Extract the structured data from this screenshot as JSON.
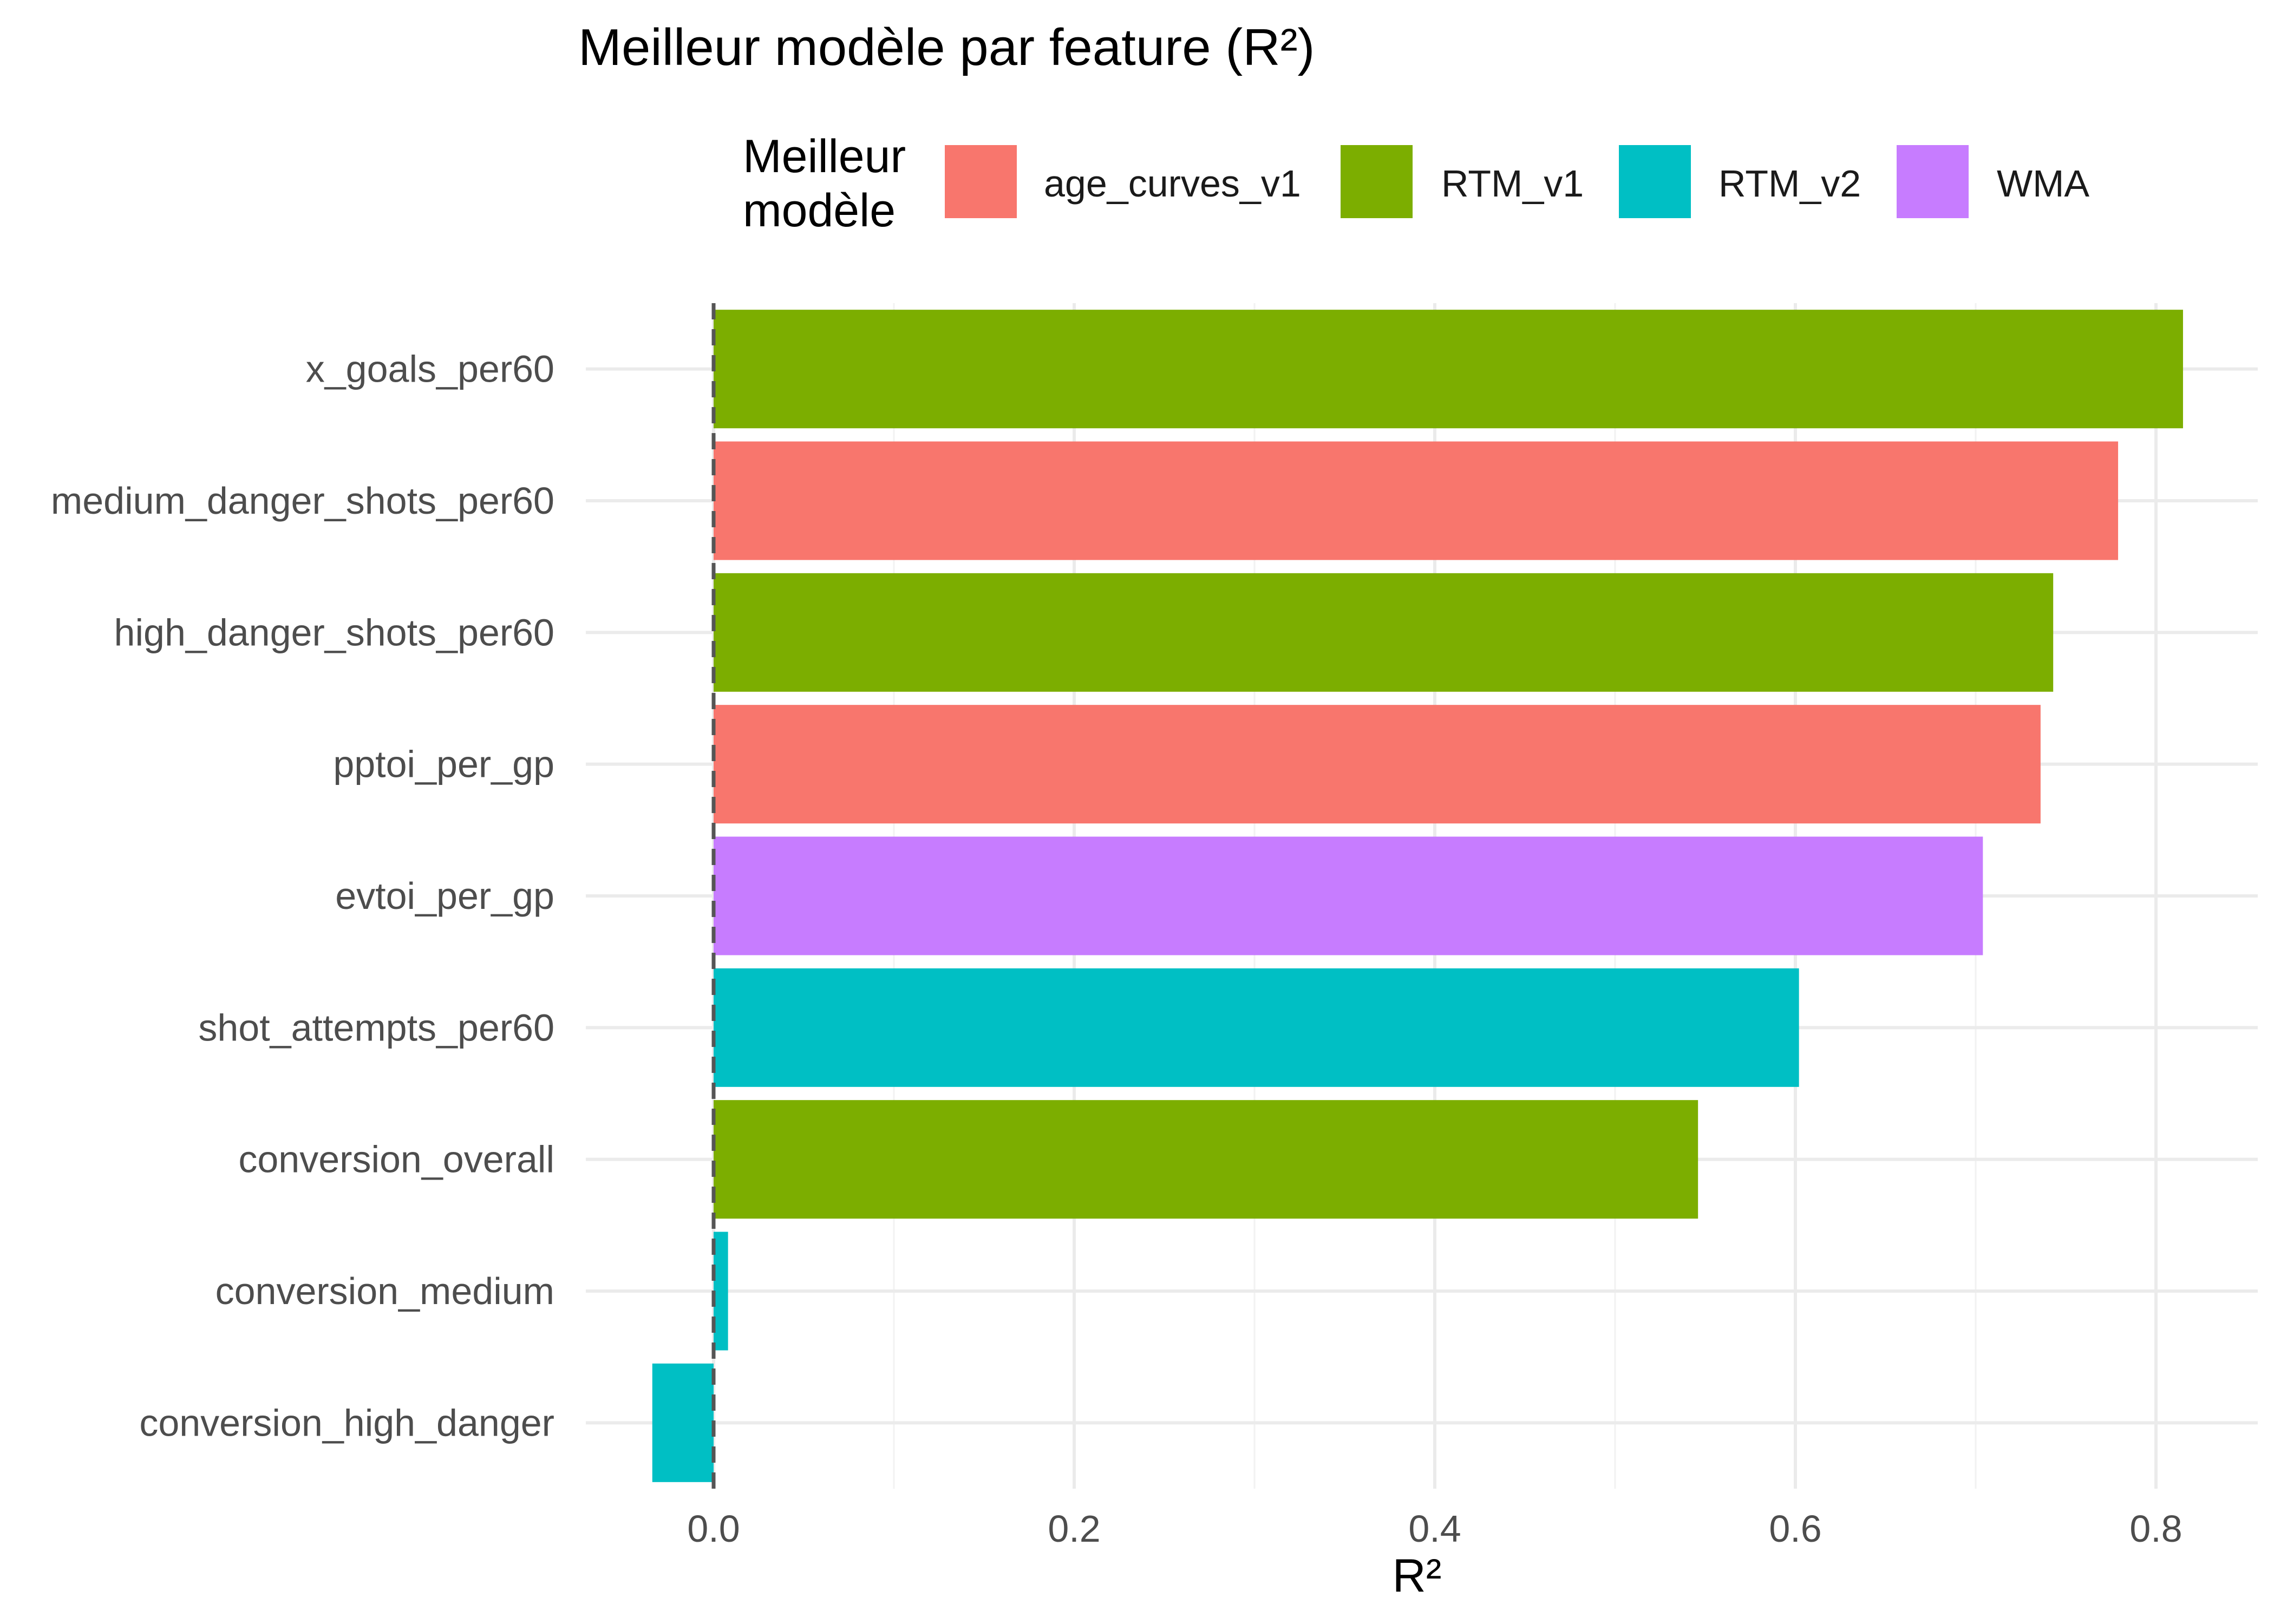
{
  "chart_data": {
    "type": "bar",
    "orientation": "horizontal",
    "title": "Meilleur modèle par feature (R²)",
    "xlabel": "R²",
    "ylabel": "",
    "xlim": [
      -0.07,
      0.86
    ],
    "x_ticks": [
      0.0,
      0.2,
      0.4,
      0.6,
      0.8
    ],
    "x_tick_labels": [
      "0.0",
      "0.2",
      "0.4",
      "0.6",
      "0.8"
    ],
    "grid": true,
    "reference_line": {
      "x": 0,
      "style": "dashed"
    },
    "legend": {
      "title_lines": [
        "Meilleur",
        "modèle"
      ],
      "placement": "top",
      "entries": [
        {
          "label": "age_curves_v1",
          "color": "#F8766D"
        },
        {
          "label": "RTM_v1",
          "color": "#7CAE00"
        },
        {
          "label": "RTM_v2",
          "color": "#00BFC4"
        },
        {
          "label": "WMA",
          "color": "#C77CFF"
        }
      ]
    },
    "categories": [
      "x_goals_per60",
      "medium_danger_shots_per60",
      "high_danger_shots_per60",
      "pptoi_per_gp",
      "evtoi_per_gp",
      "shot_attempts_per60",
      "conversion_overall",
      "conversion_medium",
      "conversion_high_danger"
    ],
    "values": [
      0.815,
      0.779,
      0.743,
      0.736,
      0.704,
      0.602,
      0.546,
      0.008,
      -0.034
    ],
    "models": [
      "RTM_v1",
      "age_curves_v1",
      "RTM_v1",
      "age_curves_v1",
      "WMA",
      "RTM_v2",
      "RTM_v1",
      "RTM_v2",
      "RTM_v2"
    ]
  }
}
